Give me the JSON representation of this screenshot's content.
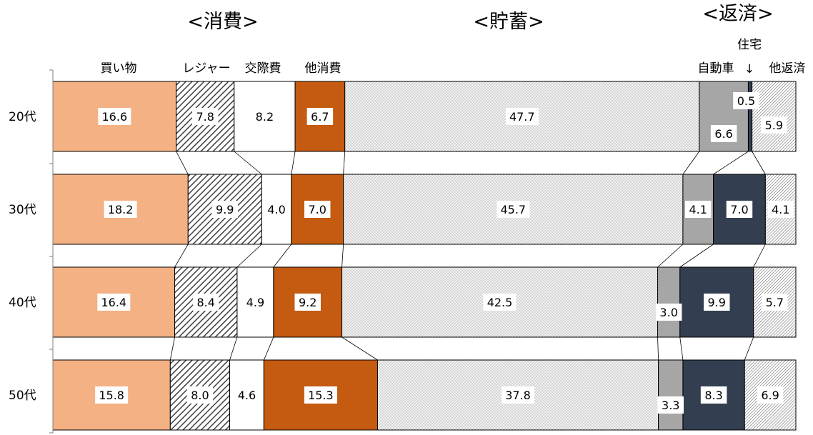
{
  "chart_data": {
    "type": "bar",
    "orientation": "horizontal-stacked-100",
    "groups": [
      "<消費>",
      "<貯蓄>",
      "<返済>"
    ],
    "series_labels": [
      "買い物",
      "レジャー",
      "交際費",
      "他消費",
      "自動車",
      "住宅",
      "他返済"
    ],
    "rows": [
      "20代",
      "30代",
      "40代",
      "50代"
    ],
    "series": [
      {
        "key": "shopping",
        "group": 0,
        "values": [
          16.6,
          18.2,
          16.4,
          15.8
        ]
      },
      {
        "key": "leisure",
        "group": 0,
        "values": [
          7.8,
          9.9,
          8.4,
          8.0
        ]
      },
      {
        "key": "social",
        "group": 0,
        "values": [
          8.2,
          4.0,
          4.9,
          4.6
        ]
      },
      {
        "key": "other_consumption",
        "group": 0,
        "values": [
          6.7,
          7.0,
          9.2,
          15.3
        ]
      },
      {
        "key": "savings",
        "group": 1,
        "values": [
          47.7,
          45.7,
          42.5,
          37.8
        ]
      },
      {
        "key": "car",
        "group": 2,
        "values": [
          6.6,
          4.1,
          3.0,
          3.3
        ]
      },
      {
        "key": "housing",
        "group": 2,
        "values": [
          0.5,
          7.0,
          9.9,
          8.3
        ]
      },
      {
        "key": "other_repayment",
        "group": 2,
        "values": [
          5.9,
          4.1,
          5.7,
          6.9
        ]
      }
    ],
    "housing_arrow": "↓",
    "colors": {
      "shopping": "#f4b183",
      "leisure": "hatch-dark",
      "social": "#ffffff",
      "other_consumption": "#c55a11",
      "savings": "dotted-light",
      "car": "#a6a6a6",
      "housing": "#333f50",
      "other_repayment": "hatch-fine"
    },
    "xlim": [
      0,
      100
    ],
    "grid": false,
    "legend": "none"
  }
}
